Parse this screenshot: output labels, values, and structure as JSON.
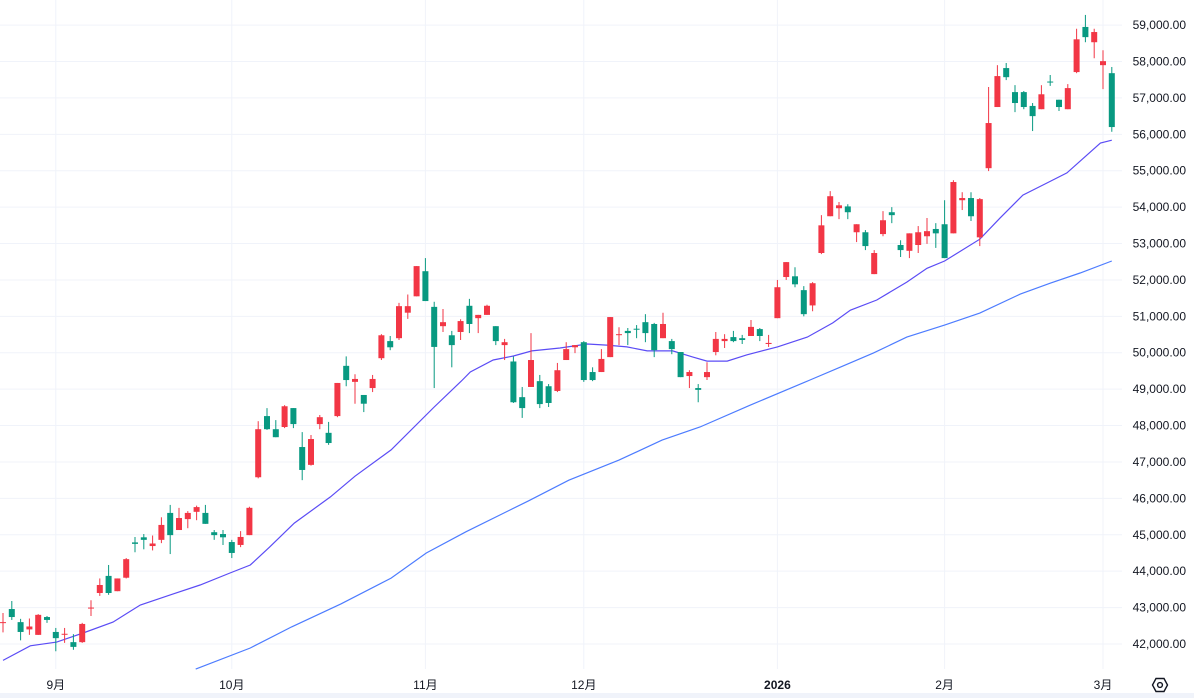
{
  "chart_data": {
    "type": "candlestick",
    "title": "",
    "xlabel": "",
    "ylabel": "",
    "ylim": [
      41230,
      59690
    ],
    "grid": true,
    "colors": {
      "up": "#f23645",
      "down": "#089981",
      "ma_short": "#5b4cf5",
      "ma_long": "#4d7cff",
      "grid": "#f0f3fa",
      "text": "#131722"
    },
    "y_ticks": [
      {
        "value": 42000,
        "label": "42,000.00"
      },
      {
        "value": 43000,
        "label": "43,000.00"
      },
      {
        "value": 44000,
        "label": "44,000.00"
      },
      {
        "value": 45000,
        "label": "45,000.00"
      },
      {
        "value": 46000,
        "label": "46,000.00"
      },
      {
        "value": 47000,
        "label": "47,000.00"
      },
      {
        "value": 48000,
        "label": "48,000.00"
      },
      {
        "value": 49000,
        "label": "49,000.00"
      },
      {
        "value": 50000,
        "label": "50,000.00"
      },
      {
        "value": 51000,
        "label": "51,000.00"
      },
      {
        "value": 52000,
        "label": "52,000.00"
      },
      {
        "value": 53000,
        "label": "53,000.00"
      },
      {
        "value": 54000,
        "label": "54,000.00"
      },
      {
        "value": 55000,
        "label": "55,000.00"
      },
      {
        "value": 56000,
        "label": "56,000.00"
      },
      {
        "value": 57000,
        "label": "57,000.00"
      },
      {
        "value": 58000,
        "label": "58,000.00"
      },
      {
        "value": 59000,
        "label": "59,000.00"
      }
    ],
    "x_ticks": [
      {
        "index": 6,
        "label": "9月"
      },
      {
        "index": 26,
        "label": "10月"
      },
      {
        "index": 48,
        "label": "11月"
      },
      {
        "index": 66,
        "label": "12月"
      },
      {
        "index": 88,
        "label": "2026",
        "year": true
      },
      {
        "index": 107,
        "label": "2月"
      },
      {
        "index": 125,
        "label": "3月"
      }
    ],
    "ohlc_fields": [
      "open",
      "high",
      "low",
      "close"
    ],
    "ohlc": [
      [
        42580,
        42850,
        42320,
        42600
      ],
      [
        42960,
        43180,
        42660,
        42740
      ],
      [
        42600,
        42690,
        42100,
        42330
      ],
      [
        42400,
        42700,
        42250,
        42480
      ],
      [
        42250,
        42820,
        42250,
        42800
      ],
      [
        42740,
        42770,
        42580,
        42660
      ],
      [
        42330,
        42440,
        41800,
        42160
      ],
      [
        42260,
        42440,
        42030,
        42280
      ],
      [
        42050,
        42270,
        41840,
        41920
      ],
      [
        42050,
        42580,
        42030,
        42550
      ],
      [
        42980,
        43200,
        42770,
        43000
      ],
      [
        43400,
        43800,
        43320,
        43620
      ],
      [
        43870,
        44170,
        43350,
        43400
      ],
      [
        43450,
        43800,
        43450,
        43800
      ],
      [
        43820,
        44360,
        43800,
        44330
      ],
      [
        44790,
        44940,
        44520,
        44750
      ],
      [
        44930,
        45020,
        44600,
        44860
      ],
      [
        44690,
        44980,
        44570,
        44760
      ],
      [
        44860,
        45480,
        44770,
        45270
      ],
      [
        45600,
        45820,
        44470,
        44990
      ],
      [
        45130,
        45740,
        45130,
        45460
      ],
      [
        45430,
        45650,
        45180,
        45600
      ],
      [
        45630,
        45800,
        45400,
        45760
      ],
      [
        45600,
        45820,
        45300,
        45300
      ],
      [
        45070,
        45130,
        44860,
        44990
      ],
      [
        45020,
        45130,
        44720,
        44930
      ],
      [
        44800,
        44860,
        44360,
        44500
      ],
      [
        44720,
        45100,
        44660,
        44940
      ],
      [
        44990,
        45770,
        44990,
        45740
      ],
      [
        46580,
        48120,
        46550,
        47900
      ],
      [
        48260,
        48480,
        47880,
        47900
      ],
      [
        47900,
        48150,
        47680,
        47680
      ],
      [
        47960,
        48560,
        47930,
        48530
      ],
      [
        48480,
        48480,
        47930,
        48040
      ],
      [
        47410,
        47820,
        46500,
        46780
      ],
      [
        46920,
        47740,
        46900,
        47630
      ],
      [
        48040,
        48290,
        47900,
        48230
      ],
      [
        47800,
        48100,
        47470,
        47520
      ],
      [
        48260,
        49170,
        48230,
        49170
      ],
      [
        49640,
        49900,
        49080,
        49250
      ],
      [
        49200,
        49410,
        48600,
        49280
      ],
      [
        48840,
        48840,
        48370,
        48600
      ],
      [
        49030,
        49390,
        48920,
        49280
      ],
      [
        49850,
        50510,
        49800,
        50480
      ],
      [
        50320,
        50460,
        50070,
        50150
      ],
      [
        50400,
        51370,
        50350,
        51280
      ],
      [
        51100,
        51600,
        50930,
        51280
      ],
      [
        51550,
        52380,
        51550,
        52380
      ],
      [
        52240,
        52600,
        51420,
        51420
      ],
      [
        51260,
        51400,
        49030,
        50160
      ],
      [
        50730,
        51200,
        50570,
        50840
      ],
      [
        50480,
        50600,
        49600,
        50210
      ],
      [
        50570,
        50920,
        50350,
        50870
      ],
      [
        51290,
        51480,
        50540,
        50790
      ],
      [
        50950,
        51040,
        50540,
        51040
      ],
      [
        51040,
        51320,
        51040,
        51290
      ],
      [
        50730,
        50730,
        50210,
        50320
      ],
      [
        50210,
        50380,
        49800,
        50290
      ],
      [
        49760,
        49900,
        48620,
        48640
      ],
      [
        48780,
        49060,
        48210,
        48480
      ],
      [
        49060,
        50540,
        49060,
        49800
      ],
      [
        49220,
        49390,
        48480,
        48590
      ],
      [
        49080,
        49140,
        48510,
        48620
      ],
      [
        48950,
        49720,
        48920,
        49520
      ],
      [
        49800,
        50290,
        49800,
        50100
      ],
      [
        50150,
        50210,
        49990,
        50210
      ],
      [
        50290,
        50320,
        49200,
        49250
      ],
      [
        49470,
        49600,
        49220,
        49250
      ],
      [
        49470,
        50100,
        49470,
        49830
      ],
      [
        49880,
        50980,
        49880,
        50980
      ],
      [
        50490,
        50700,
        50210,
        50510
      ],
      [
        50600,
        50680,
        50210,
        50540
      ],
      [
        50660,
        50760,
        50400,
        50640
      ],
      [
        50840,
        51060,
        50290,
        50540
      ],
      [
        50790,
        50820,
        49880,
        50070
      ],
      [
        50400,
        51100,
        50400,
        50790
      ],
      [
        50320,
        50380,
        49960,
        50100
      ],
      [
        50020,
        50020,
        49330,
        49330
      ],
      [
        49360,
        49520,
        49030,
        49470
      ],
      [
        49030,
        49140,
        48640,
        48980
      ],
      [
        49330,
        49740,
        49250,
        49470
      ],
      [
        50020,
        50570,
        49930,
        50380
      ],
      [
        50320,
        50510,
        50130,
        50380
      ],
      [
        50430,
        50600,
        50290,
        50320
      ],
      [
        50400,
        50490,
        50240,
        50350
      ],
      [
        50460,
        50900,
        50460,
        50710
      ],
      [
        50650,
        50680,
        50320,
        50460
      ],
      [
        50240,
        50490,
        50160,
        50270
      ],
      [
        50950,
        52000,
        50950,
        51800
      ],
      [
        52080,
        52490,
        52000,
        52490
      ],
      [
        52100,
        52350,
        51800,
        51880
      ],
      [
        51720,
        51830,
        51000,
        51060
      ],
      [
        51300,
        51940,
        51140,
        51910
      ],
      [
        52740,
        53780,
        52710,
        53500
      ],
      [
        53750,
        54440,
        53750,
        54300
      ],
      [
        53970,
        54140,
        53670,
        54050
      ],
      [
        54020,
        54080,
        53670,
        53860
      ],
      [
        53310,
        53530,
        53040,
        53530
      ],
      [
        53310,
        53370,
        52820,
        52930
      ],
      [
        52160,
        52820,
        52160,
        52740
      ],
      [
        53260,
        53890,
        53200,
        53640
      ],
      [
        53860,
        54000,
        53560,
        53780
      ],
      [
        52960,
        53090,
        52630,
        52820
      ],
      [
        52800,
        53280,
        52600,
        53280
      ],
      [
        52960,
        53480,
        52740,
        53310
      ],
      [
        53200,
        53700,
        52990,
        53340
      ],
      [
        53400,
        53560,
        52880,
        53280
      ],
      [
        53530,
        54190,
        52600,
        52600
      ],
      [
        53280,
        54740,
        53280,
        54690
      ],
      [
        54190,
        54410,
        53920,
        54250
      ],
      [
        54250,
        54410,
        53620,
        53750
      ],
      [
        53170,
        54250,
        52930,
        54220
      ],
      [
        55070,
        57300,
        54990,
        56310
      ],
      [
        56750,
        57900,
        56750,
        57600
      ],
      [
        57820,
        57960,
        57490,
        57570
      ],
      [
        57160,
        57350,
        56610,
        56860
      ],
      [
        57160,
        57190,
        56690,
        56750
      ],
      [
        56780,
        56860,
        56090,
        56500
      ],
      [
        56690,
        57350,
        56690,
        57100
      ],
      [
        57450,
        57630,
        57330,
        57430
      ],
      [
        56950,
        56950,
        56640,
        56750
      ],
      [
        56690,
        57380,
        56690,
        57270
      ],
      [
        57710,
        58900,
        57680,
        58610
      ],
      [
        58950,
        59280,
        58530,
        58670
      ],
      [
        58530,
        58900,
        58090,
        58810
      ],
      [
        57900,
        58310,
        57240,
        58010
      ],
      [
        57680,
        57850,
        56070,
        56200
      ]
    ],
    "moving_averages": [
      {
        "points": [
          [
            0,
            41550
          ],
          [
            3.1,
            41950
          ],
          [
            6.1,
            42050
          ],
          [
            9.1,
            42300
          ],
          [
            12.5,
            42600
          ],
          [
            15.6,
            43070
          ],
          [
            19.3,
            43370
          ],
          [
            22.4,
            43620
          ],
          [
            25.8,
            43950
          ],
          [
            28.1,
            44170
          ],
          [
            30.3,
            44660
          ],
          [
            33.1,
            45320
          ],
          [
            37.2,
            46040
          ],
          [
            40,
            46610
          ],
          [
            44.1,
            47330
          ],
          [
            49,
            48510
          ],
          [
            52.2,
            49250
          ],
          [
            53.1,
            49470
          ],
          [
            55.7,
            49800
          ],
          [
            58,
            49910
          ],
          [
            60.1,
            50050
          ],
          [
            63.3,
            50130
          ],
          [
            66.4,
            50240
          ],
          [
            68.6,
            50210
          ],
          [
            70.9,
            50160
          ],
          [
            73.2,
            50050
          ],
          [
            76.1,
            50050
          ],
          [
            78.4,
            49880
          ],
          [
            80,
            49770
          ],
          [
            82.3,
            49770
          ],
          [
            84.5,
            49940
          ],
          [
            88,
            50160
          ],
          [
            91.4,
            50430
          ],
          [
            94.3,
            50820
          ],
          [
            96.3,
            51170
          ],
          [
            99.3,
            51450
          ],
          [
            102.7,
            51940
          ],
          [
            105,
            52320
          ],
          [
            107,
            52520
          ],
          [
            111,
            53120
          ],
          [
            113.3,
            53700
          ],
          [
            115.9,
            54330
          ],
          [
            118.6,
            54660
          ],
          [
            120.9,
            54940
          ],
          [
            124.7,
            55760
          ],
          [
            126,
            55840
          ]
        ]
      },
      {
        "points": [
          [
            21.9,
            41310
          ],
          [
            28.1,
            41890
          ],
          [
            32.8,
            42470
          ],
          [
            38.4,
            43100
          ],
          [
            44.1,
            43810
          ],
          [
            48.1,
            44500
          ],
          [
            52.6,
            45080
          ],
          [
            59.7,
            45930
          ],
          [
            64.3,
            46500
          ],
          [
            70,
            47050
          ],
          [
            74.9,
            47600
          ],
          [
            79.2,
            47960
          ],
          [
            84.9,
            48560
          ],
          [
            91.7,
            49250
          ],
          [
            95.1,
            49600
          ],
          [
            98.9,
            49990
          ],
          [
            102.7,
            50430
          ],
          [
            107,
            50760
          ],
          [
            111,
            51090
          ],
          [
            115.6,
            51610
          ],
          [
            119,
            51910
          ],
          [
            122.4,
            52190
          ],
          [
            126,
            52520
          ]
        ]
      }
    ]
  },
  "controls": {
    "settings_icon": "settings-hexagon-icon"
  }
}
